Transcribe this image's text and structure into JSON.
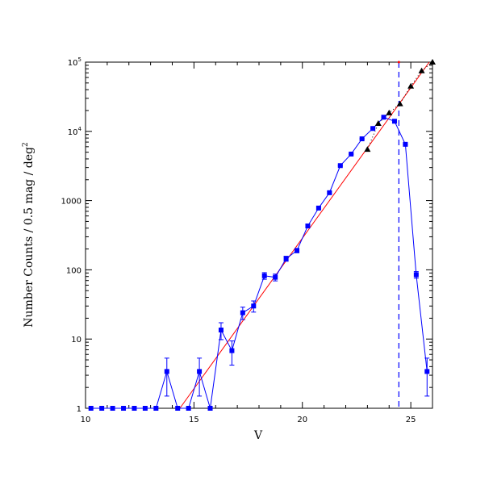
{
  "chart_data": {
    "type": "scatter",
    "title": "",
    "xlabel": "V",
    "ylabel": "Number Counts / 0.5 mag / deg",
    "ylabel_superscript": "2",
    "xlim": [
      10,
      26
    ],
    "ylim": [
      1,
      100000
    ],
    "yscale": "log",
    "grid": false,
    "x_ticks": [
      {
        "value": 10,
        "label": "10"
      },
      {
        "value": 15,
        "label": "15"
      },
      {
        "value": 20,
        "label": "20"
      },
      {
        "value": 25,
        "label": "25"
      }
    ],
    "y_ticks": [
      {
        "value": 1,
        "label": "1",
        "sup": ""
      },
      {
        "value": 10,
        "label": "10",
        "sup": ""
      },
      {
        "value": 100,
        "label": "100",
        "sup": ""
      },
      {
        "value": 1000,
        "label": "1000",
        "sup": ""
      },
      {
        "value": 10000,
        "label": "10",
        "sup": "4"
      },
      {
        "value": 100000,
        "label": "10",
        "sup": "5"
      }
    ],
    "series": [
      {
        "marker": "square",
        "color": "#0000ff",
        "connected": true,
        "x": [
          10.25,
          10.75,
          11.25,
          11.75,
          12.25,
          12.75,
          13.25,
          13.75,
          14.25,
          14.75,
          15.25,
          15.75,
          16.25,
          16.75,
          17.25,
          17.75,
          18.25,
          18.75,
          19.25,
          19.75,
          20.25,
          20.75,
          21.25,
          21.75,
          22.25,
          22.75,
          23.25,
          23.75,
          24.25,
          24.75,
          25.25,
          25.75
        ],
        "y": [
          1,
          1,
          1,
          1,
          1,
          1,
          1,
          3.4,
          1,
          1,
          3.4,
          1,
          13.5,
          6.8,
          24,
          30,
          82,
          78,
          145,
          190,
          430,
          780,
          1300,
          3200,
          4700,
          7800,
          11000,
          16000,
          14000,
          6500,
          85,
          3.4
        ],
        "yerr": [
          0,
          0,
          0,
          0,
          0,
          0,
          0,
          1.9,
          0,
          0,
          1.9,
          0,
          3.7,
          2.6,
          4.9,
          5.5,
          9,
          8.8,
          12,
          13.8,
          20.7,
          27.9,
          36,
          56,
          68.6,
          88,
          105,
          126,
          118,
          80.6,
          9.2,
          1.9
        ]
      },
      {
        "marker": "triangle",
        "color": "#000000",
        "connected": false,
        "dotted_line": true,
        "x": [
          23.0,
          23.5,
          24.0,
          24.5,
          25.0,
          25.5,
          26.0
        ],
        "y": [
          5500,
          13000,
          18500,
          25000,
          45000,
          75000,
          100000
        ]
      }
    ],
    "fit_line": {
      "color": "#ff0000",
      "x": [
        14.35,
        25.85
      ],
      "y": [
        1,
        100000
      ]
    },
    "limit_line": {
      "color": "#0000ff",
      "style": "dashed",
      "x": 24.45
    }
  }
}
